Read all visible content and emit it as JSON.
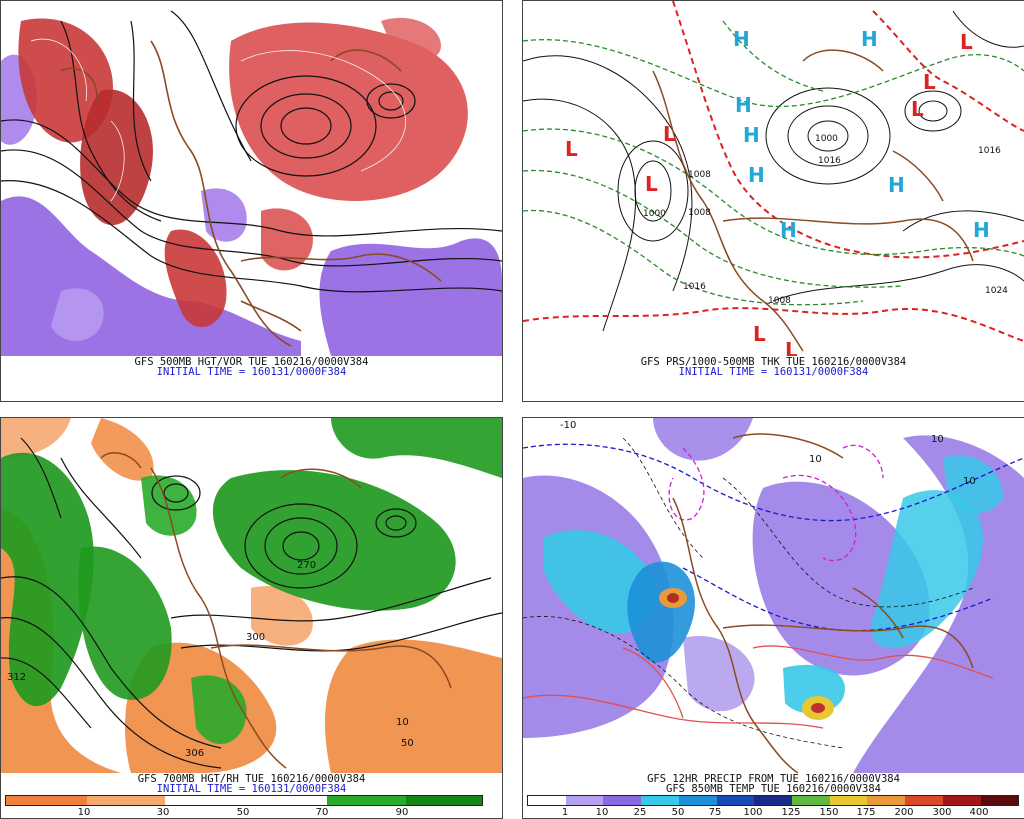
{
  "panels": [
    {
      "caption1": "GFS 500MB HGT/VOR TUE 160216/0000V384",
      "caption2": "INITIAL TIME = 160131/0000F384"
    },
    {
      "caption1": "GFS PRS/1000-500MB THK TUE 160216/0000V384",
      "caption2": "INITIAL TIME = 160131/0000F384",
      "pressure_labels": [
        "1000",
        "1008",
        "1016",
        "1008",
        "1016",
        "1016",
        "1024",
        "1008",
        "1000"
      ],
      "high_symbol": "H",
      "low_symbol": "L"
    },
    {
      "caption1": "GFS 700MB HGT/RH TUE 160216/0000V384",
      "caption2": "INITIAL TIME = 160131/0000F384",
      "height_labels": [
        "312",
        "306",
        "300",
        "270",
        "50",
        "10"
      ],
      "scale_ticks": [
        "10",
        "30",
        "50",
        "70",
        "90"
      ]
    },
    {
      "caption1": "GFS 12HR PRECIP FROM TUE 160216/0000V384",
      "caption2": "GFS 850MB TEMP TUE 160216/0000V384",
      "temp_labels": [
        "10",
        "10",
        "-10",
        "10"
      ],
      "scale_ticks": [
        "1",
        "10",
        "25",
        "50",
        "75",
        "100",
        "125",
        "150",
        "175",
        "200",
        "300",
        "400"
      ]
    }
  ],
  "colors": {
    "vort_red": "#d94a4a",
    "vort_purple": "#8a5ae0",
    "rh_green": "#1f9a1f",
    "rh_orange": "#f08a40",
    "precip_purple": "#9a7ee8",
    "precip_cyan": "#38c8e8",
    "coast_brown": "#8a4a22",
    "thk_red": "#dd2222",
    "thk_green": "#2a8a2a",
    "high_cyan": "#22a8d8"
  }
}
